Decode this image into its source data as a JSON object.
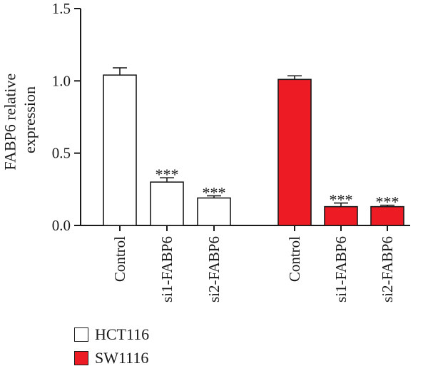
{
  "chart_data": {
    "type": "bar",
    "ylabel": "FABP6 relative\nexpression",
    "ylim": [
      0,
      1.5
    ],
    "yticks": [
      "0.0",
      "0.5",
      "1.0",
      "1.5"
    ],
    "groups": [
      {
        "name": "HCT116",
        "color": "#ffffff",
        "bars": [
          {
            "category": "Control",
            "value": 1.04,
            "error": 0.05,
            "annotation": ""
          },
          {
            "category": "si1-FABP6",
            "value": 0.3,
            "error": 0.03,
            "annotation": "***"
          },
          {
            "category": "si2-FABP6",
            "value": 0.19,
            "error": 0.015,
            "annotation": "***"
          }
        ]
      },
      {
        "name": "SW1116",
        "color": "#ed1c24",
        "bars": [
          {
            "category": "Control",
            "value": 1.01,
            "error": 0.025,
            "annotation": ""
          },
          {
            "category": "si1-FABP6",
            "value": 0.13,
            "error": 0.025,
            "annotation": "***"
          },
          {
            "category": "si2-FABP6",
            "value": 0.13,
            "error": 0.01,
            "annotation": "***"
          }
        ]
      }
    ],
    "legend": [
      {
        "label": "HCT116",
        "color": "#ffffff"
      },
      {
        "label": "SW1116",
        "color": "#ed1c24"
      }
    ]
  }
}
